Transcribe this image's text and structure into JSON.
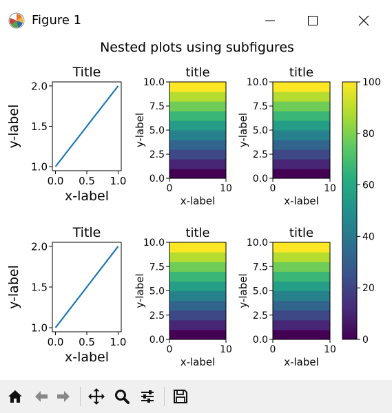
{
  "window": {
    "title": "Figure 1",
    "app_icon": "matplotlib-logo-icon",
    "controls": [
      "minimize-icon",
      "maximize-icon",
      "close-icon"
    ]
  },
  "figure": {
    "suptitle": "Nested plots using subfigures",
    "colorbar_ticks": [
      "0",
      "20",
      "40",
      "60",
      "80",
      "100"
    ]
  },
  "toolbar": {
    "buttons": [
      "home-icon",
      "back-icon",
      "forward-icon",
      "pan-icon",
      "zoom-icon",
      "configure-icon",
      "save-icon"
    ]
  },
  "chart_data": [
    {
      "type": "line",
      "title": "Title",
      "xlabel": "x-label",
      "ylabel": "y-label",
      "x": [
        0,
        1
      ],
      "y": [
        1,
        2
      ],
      "xlim": [
        -0.05,
        1.05
      ],
      "ylim": [
        0.95,
        2.05
      ],
      "xticks": [
        "0.0",
        "0.5",
        "1.0"
      ],
      "yticks": [
        "1.0",
        "1.5",
        "2.0"
      ],
      "color": "#1f77b4"
    },
    {
      "type": "heatmap",
      "title": "title",
      "xlabel": "x-label",
      "ylabel": "y-label",
      "xticks": [
        "0",
        "10"
      ],
      "yticks": [
        "0.0",
        "2.5",
        "5.0",
        "7.5",
        "10.0"
      ],
      "xlim": [
        0,
        10
      ],
      "ylim": [
        0,
        10
      ],
      "rows": 10,
      "values": [
        0,
        11,
        22,
        33,
        44,
        56,
        67,
        78,
        89,
        100
      ],
      "colormap": "viridis",
      "vmin": 0,
      "vmax": 100
    },
    {
      "type": "heatmap",
      "title": "title",
      "xlabel": "x-label",
      "ylabel": "y-label",
      "xticks": [
        "0",
        "10"
      ],
      "yticks": [
        "0.0",
        "2.5",
        "5.0",
        "7.5",
        "10.0"
      ],
      "xlim": [
        0,
        10
      ],
      "ylim": [
        0,
        10
      ],
      "rows": 10,
      "values": [
        0,
        11,
        22,
        33,
        44,
        56,
        67,
        78,
        89,
        100
      ],
      "colormap": "viridis",
      "vmin": 0,
      "vmax": 100
    },
    {
      "type": "line",
      "title": "Title",
      "xlabel": "x-label",
      "ylabel": "y-label",
      "x": [
        0,
        1
      ],
      "y": [
        1,
        2
      ],
      "xlim": [
        -0.05,
        1.05
      ],
      "ylim": [
        0.95,
        2.05
      ],
      "xticks": [
        "0.0",
        "0.5",
        "1.0"
      ],
      "yticks": [
        "1.0",
        "1.5",
        "2.0"
      ],
      "color": "#1f77b4"
    },
    {
      "type": "heatmap",
      "title": "title",
      "xlabel": "x-label",
      "ylabel": "y-label",
      "xticks": [
        "0",
        "10"
      ],
      "yticks": [
        "0.0",
        "2.5",
        "5.0",
        "7.5",
        "10.0"
      ],
      "xlim": [
        0,
        10
      ],
      "ylim": [
        0,
        10
      ],
      "rows": 10,
      "values": [
        0,
        11,
        22,
        33,
        44,
        56,
        67,
        78,
        89,
        100
      ],
      "colormap": "viridis",
      "vmin": 0,
      "vmax": 100
    },
    {
      "type": "heatmap",
      "title": "title",
      "xlabel": "x-label",
      "ylabel": "y-label",
      "xticks": [
        "0",
        "10"
      ],
      "yticks": [
        "0.0",
        "2.5",
        "5.0",
        "7.5",
        "10.0"
      ],
      "xlim": [
        0,
        10
      ],
      "ylim": [
        0,
        10
      ],
      "rows": 10,
      "values": [
        0,
        11,
        22,
        33,
        44,
        56,
        67,
        78,
        89,
        100
      ],
      "colormap": "viridis",
      "vmin": 0,
      "vmax": 100
    }
  ]
}
